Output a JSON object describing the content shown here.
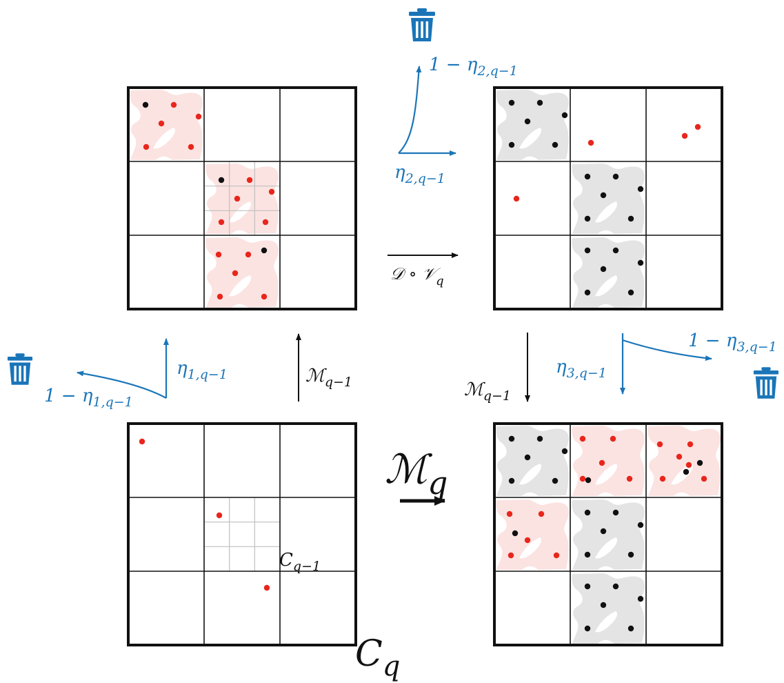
{
  "colors": {
    "accent": "#1a75b8",
    "red_dot": "#e8261c",
    "black_dot": "#111111",
    "red_blob": "#fbe3e1",
    "grey_blob": "#e4e4e4",
    "grid": "#111111",
    "fine_grid": "#bfbfbf"
  },
  "icons": [
    "trash-icon",
    "trash-icon",
    "trash-icon"
  ],
  "labels": {
    "top_drop_prob": "1 − η",
    "top_drop_sub": "2,q−1",
    "top_keep_prob": "η",
    "top_keep_sub": "2,q−1",
    "left_drop_prob": "1 − η",
    "left_drop_sub": "1,q−1",
    "left_keep_prob": "η",
    "left_keep_sub": "1,q−1",
    "right_drop_prob": "1 − η",
    "right_drop_sub": "3,q−1",
    "right_keep_prob": "η",
    "right_keep_sub": "3,q−1",
    "up_arrow_op": "ℳ",
    "up_arrow_sub": "q−1",
    "down_arrow_op": "ℳ",
    "down_arrow_sub": "q−1",
    "middle_op": "𝒟 ∘ 𝒱",
    "middle_op_sub": "q",
    "big_op": "ℳ",
    "big_op_sub": "q",
    "cell_label": "C",
    "cell_label_sub": "q−1",
    "cube_label": "C",
    "cube_label_sub": "q"
  }
}
